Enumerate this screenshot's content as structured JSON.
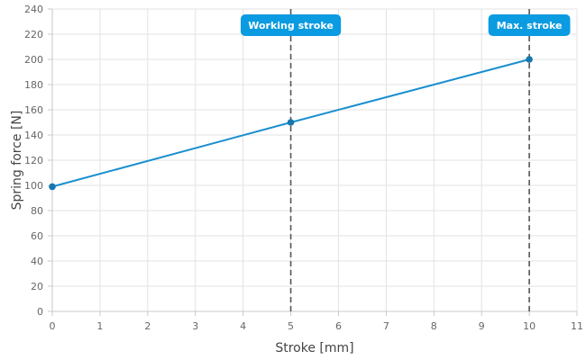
{
  "chart_data": {
    "type": "line",
    "title": "",
    "xlabel": "Stroke [mm]",
    "ylabel": "Spring force [N]",
    "xlim": [
      0,
      11
    ],
    "ylim": [
      0,
      240
    ],
    "x_ticks": [
      0,
      1,
      2,
      3,
      4,
      5,
      6,
      7,
      8,
      9,
      10,
      11
    ],
    "y_ticks": [
      0,
      20,
      40,
      60,
      80,
      100,
      120,
      140,
      160,
      180,
      200,
      220,
      240
    ],
    "grid": true,
    "legend": "none",
    "series": [
      {
        "color": "#1a8fcf",
        "points": [
          {
            "x": 0,
            "y": 99
          },
          {
            "x": 5,
            "y": 150
          },
          {
            "x": 10,
            "y": 200
          }
        ]
      }
    ],
    "markers": [
      {
        "x": 5,
        "label": "Working stroke",
        "color": "#0a9be0"
      },
      {
        "x": 10,
        "label": "Max. stroke",
        "color": "#0a9be0"
      }
    ]
  }
}
